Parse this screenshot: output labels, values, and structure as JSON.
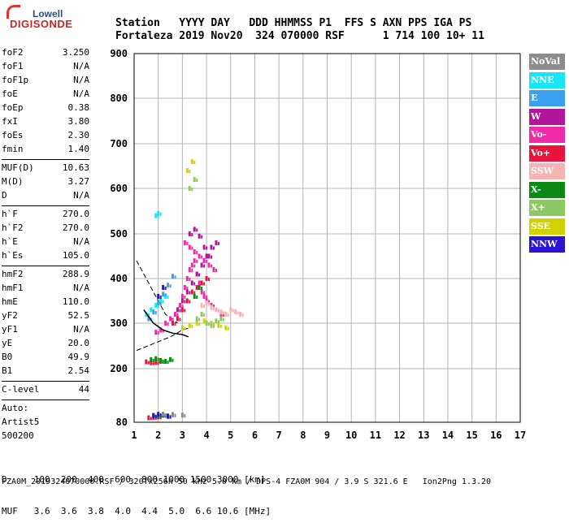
{
  "logo": {
    "top": "Lowell",
    "bottom": "DIGISONDE"
  },
  "header": {
    "line1": "Station   YYYY DAY   DDD HHMMSS P1  FFS S AXN PPS IGA PS",
    "line2": "Fortaleza 2019 Nov20  324 070000 RSF      1 714 100 10+ 11"
  },
  "params": [
    {
      "label": "foF2",
      "value": "3.250"
    },
    {
      "label": "foF1",
      "value": "N/A"
    },
    {
      "label": "foF1p",
      "value": "N/A"
    },
    {
      "label": "foE",
      "value": "N/A"
    },
    {
      "label": "foEp",
      "value": "0.38"
    },
    {
      "label": "fxI",
      "value": "3.80"
    },
    {
      "label": "foEs",
      "value": "2.30"
    },
    {
      "label": "fmin",
      "value": "1.40"
    },
    {
      "sep": true
    },
    {
      "label": "MUF(D)",
      "value": "10.63"
    },
    {
      "label": "M(D)",
      "value": "3.27"
    },
    {
      "label": "D",
      "value": "N/A"
    },
    {
      "sep": true
    },
    {
      "label": "h`F",
      "value": "270.0"
    },
    {
      "label": "h`F2",
      "value": "270.0"
    },
    {
      "label": "h`E",
      "value": "N/A"
    },
    {
      "label": "h`Es",
      "value": "105.0"
    },
    {
      "sep": true
    },
    {
      "label": "hmF2",
      "value": "288.9"
    },
    {
      "label": "hmF1",
      "value": "N/A"
    },
    {
      "label": "hmE",
      "value": "110.0"
    },
    {
      "label": "yF2",
      "value": "52.5"
    },
    {
      "label": "yF1",
      "value": "N/A"
    },
    {
      "label": "yE",
      "value": "20.0"
    },
    {
      "label": "B0",
      "value": "49.9"
    },
    {
      "label": "B1",
      "value": "2.54"
    },
    {
      "sep": true
    },
    {
      "label": "C-level",
      "value": "44"
    },
    {
      "sep": true
    },
    {
      "label": "Auto:",
      "value": ""
    },
    {
      "label": "Artist5",
      "value": ""
    },
    {
      "label": "500200",
      "value": ""
    }
  ],
  "legend": [
    {
      "label": "NoVal",
      "color": "#8c8c8c"
    },
    {
      "label": "NNE",
      "color": "#19e6f5"
    },
    {
      "label": "E",
      "color": "#3aa0f0"
    },
    {
      "label": "W",
      "color": "#b0159c"
    },
    {
      "label": "Vo-",
      "color": "#f02aa8"
    },
    {
      "label": "Vo+",
      "color": "#e8143c"
    },
    {
      "label": "SSW",
      "color": "#f5b4b4"
    },
    {
      "label": "X-",
      "color": "#0a8a14"
    },
    {
      "label": "X+",
      "color": "#8cc864"
    },
    {
      "label": "SSE",
      "color": "#d2d200"
    },
    {
      "label": "NNW",
      "color": "#2814d2"
    }
  ],
  "bottom_table": {
    "line1": "D     100  200  400  600  800 1000 1500 3000 [km]",
    "line2": "MUF   3.6  3.6  3.8  4.0  4.4  5.0  6.6 10.6 [MHz]"
  },
  "footer": "FZA0M_2019324070000.RSF / 320fx256h 50 kHz 5.0 km / DPS-4 FZA0M 904 / 3.9 S 321.6 E   Ion2Png 1.3.20",
  "chart_data": {
    "type": "scatter",
    "title": "",
    "xlabel": "",
    "ylabel": "",
    "xlim": [
      1,
      17
    ],
    "ylim": [
      80,
      900
    ],
    "x_ticks": [
      1,
      2,
      3,
      4,
      5,
      6,
      7,
      8,
      9,
      10,
      11,
      12,
      13,
      14,
      15,
      16,
      17
    ],
    "y_ticks": [
      80,
      200,
      300,
      400,
      500,
      600,
      700,
      800,
      900
    ],
    "grid": true,
    "series": [
      {
        "name": "Vo-",
        "color": "#f02aa8",
        "x": [
          1.9,
          2.1,
          2.3,
          2.5,
          2.7,
          2.9,
          3.0,
          3.1,
          3.2,
          3.3,
          3.4,
          3.5,
          3.6,
          3.7,
          3.8,
          3.9,
          4.0,
          4.2,
          4.4,
          4.6,
          3.1,
          3.3,
          3.5,
          3.7,
          3.9,
          4.1,
          4.3
        ],
        "y": [
          280,
          285,
          300,
          310,
          320,
          340,
          360,
          380,
          400,
          420,
          430,
          440,
          410,
          390,
          370,
          360,
          350,
          340,
          330,
          320,
          480,
          470,
          460,
          450,
          440,
          430,
          420
        ]
      },
      {
        "name": "W",
        "color": "#b0159c",
        "x": [
          2.8,
          3.0,
          3.2,
          3.4,
          3.6,
          3.8,
          4.0,
          4.2,
          4.4,
          3.3,
          3.5,
          3.7,
          3.9,
          4.1
        ],
        "y": [
          330,
          350,
          370,
          390,
          410,
          430,
          450,
          470,
          480,
          500,
          510,
          495,
          470,
          450
        ]
      },
      {
        "name": "Vo+",
        "color": "#e8143c",
        "x": [
          2.6,
          2.8,
          3.0,
          3.2,
          3.4,
          3.6,
          3.8,
          4.0,
          1.5,
          1.7,
          1.9,
          2.1,
          1.6,
          1.8,
          2.0
        ],
        "y": [
          300,
          310,
          330,
          350,
          370,
          380,
          390,
          400,
          215,
          213,
          214,
          216,
          90,
          91,
          92
        ]
      },
      {
        "name": "SSW",
        "color": "#f5b4b4",
        "x": [
          3.8,
          4.0,
          4.2,
          4.4,
          4.6,
          4.8,
          5.0,
          5.2,
          5.4
        ],
        "y": [
          340,
          345,
          335,
          330,
          325,
          320,
          330,
          325,
          320
        ]
      },
      {
        "name": "SSE",
        "color": "#d2d200",
        "x": [
          3.0,
          3.3,
          3.6,
          3.9,
          4.2,
          4.5,
          4.8,
          3.2,
          3.4
        ],
        "y": [
          290,
          295,
          300,
          305,
          300,
          295,
          290,
          640,
          660
        ]
      },
      {
        "name": "X-",
        "color": "#0a8a14",
        "x": [
          1.7,
          1.9,
          2.1,
          2.3,
          2.5,
          1.8,
          2.0,
          2.2,
          2.4,
          3.5,
          3.7
        ],
        "y": [
          220,
          222,
          218,
          216,
          220,
          95,
          94,
          96,
          93,
          360,
          380
        ]
      },
      {
        "name": "X+",
        "color": "#8cc864",
        "x": [
          3.6,
          3.8,
          4.0,
          4.2,
          4.4,
          4.6,
          3.3,
          3.5
        ],
        "y": [
          310,
          320,
          300,
          295,
          305,
          310,
          600,
          620
        ]
      },
      {
        "name": "NNE",
        "color": "#19e6f5",
        "x": [
          1.5,
          1.7,
          1.9,
          2.1,
          2.3,
          1.9,
          2.0
        ],
        "y": [
          320,
          330,
          340,
          350,
          360,
          540,
          545
        ]
      },
      {
        "name": "E",
        "color": "#3aa0f0",
        "x": [
          1.6,
          1.8,
          2.0,
          2.2,
          2.4,
          2.6
        ],
        "y": [
          310,
          325,
          345,
          365,
          385,
          405
        ]
      },
      {
        "name": "NNW",
        "color": "#2814d2",
        "x": [
          1.8,
          2.0,
          2.2,
          2.4,
          2.6,
          2.0,
          2.2
        ],
        "y": [
          95,
          98,
          96,
          94,
          97,
          360,
          380
        ]
      },
      {
        "name": "NoVal",
        "color": "#8c8c8c",
        "x": [
          2.2,
          2.6,
          3.0
        ],
        "y": [
          98,
          97,
          96
        ]
      }
    ],
    "profile_line": {
      "x": [
        1.4,
        1.8,
        2.2,
        2.6,
        3.0,
        3.25
      ],
      "y": [
        330,
        300,
        285,
        278,
        275,
        270
      ]
    },
    "dashed_lines": [
      {
        "x": [
          1.1,
          1.7,
          2.3,
          2.8
        ],
        "y": [
          440,
          380,
          320,
          300
        ]
      },
      {
        "x": [
          1.1,
          1.8,
          2.5,
          3.0,
          3.25
        ],
        "y": [
          240,
          255,
          270,
          285,
          289
        ]
      }
    ]
  }
}
